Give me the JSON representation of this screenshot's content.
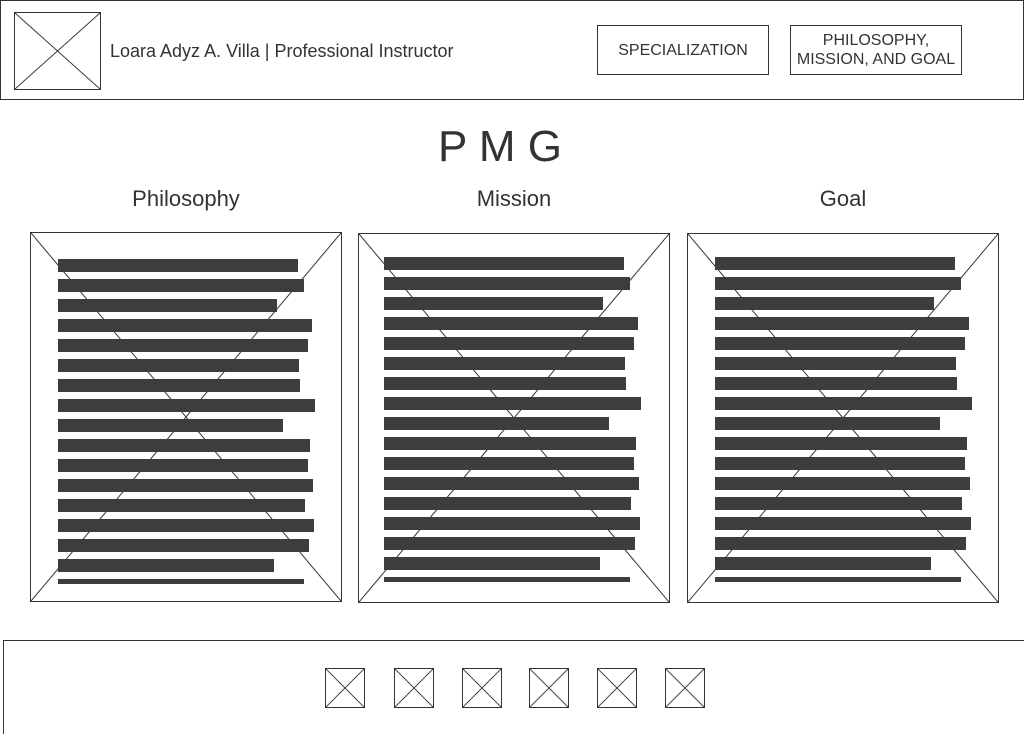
{
  "header": {
    "site_title": "Loara Adyz A. Villa | Professional Instructor",
    "nav": [
      {
        "label": "SPECIALIZATION"
      },
      {
        "label": "PHILOSOPHY, MISSION, AND GOAL"
      }
    ]
  },
  "main": {
    "title": "P M G",
    "columns": [
      {
        "heading": "Philosophy"
      },
      {
        "heading": "Mission"
      },
      {
        "heading": "Goal"
      }
    ]
  },
  "footer": {
    "social_icons": [
      "image-icon",
      "image-icon",
      "image-icon",
      "image-icon",
      "image-icon",
      "image-icon"
    ]
  },
  "colors": {
    "line": "#333333",
    "text_placeholder": "#3d3d3d",
    "background": "#ffffff"
  }
}
